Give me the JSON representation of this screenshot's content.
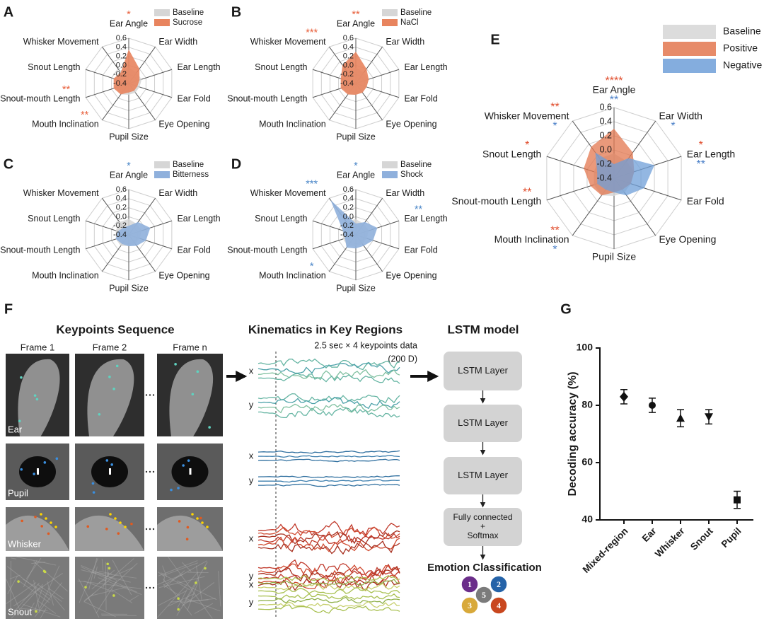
{
  "chart_data": [
    {
      "type": "radar",
      "panel_label": "A",
      "categories": [
        "Ear Angle",
        "Ear Width",
        "Ear Length",
        "Ear Fold",
        "Eye Opening",
        "Pupil Size",
        "Mouth Inclination",
        "Snout-mouth Length",
        "Snout Length",
        "Whisker Movement"
      ],
      "rlim": [
        -0.4,
        0.6
      ],
      "rticks": [
        -0.4,
        -0.2,
        {
          "value": 0,
          "label": "0.0"
        },
        0.2,
        0.4,
        0.6
      ],
      "series": [
        {
          "name": "Baseline",
          "color": "#d6d6d6",
          "values": [
            -0.05,
            -0.1,
            -0.1,
            -0.15,
            -0.15,
            -0.15,
            -0.1,
            -0.1,
            -0.1,
            -0.05
          ]
        },
        {
          "name": "Sucrose",
          "color": "#e8845e",
          "star_color": "#e8603c",
          "values": [
            0.35,
            0.0,
            -0.15,
            -0.2,
            -0.2,
            -0.2,
            -0.1,
            -0.05,
            -0.05,
            -0.1
          ],
          "stars": [
            "*",
            null,
            null,
            null,
            null,
            null,
            "**",
            "**",
            null,
            null
          ]
        }
      ]
    },
    {
      "type": "radar",
      "panel_label": "B",
      "categories": [
        "Ear Angle",
        "Ear Width",
        "Ear Length",
        "Ear Fold",
        "Eye Opening",
        "Pupil Size",
        "Mouth Inclination",
        "Snout-mouth Length",
        "Snout Length",
        "Whisker Movement"
      ],
      "rlim": [
        -0.4,
        0.6
      ],
      "rticks": [
        -0.4,
        -0.2,
        {
          "value": 0,
          "label": "0.0"
        },
        0.2,
        0.4,
        0.6
      ],
      "series": [
        {
          "name": "Baseline",
          "color": "#d6d6d6",
          "values": [
            -0.05,
            -0.1,
            -0.1,
            -0.15,
            -0.15,
            -0.15,
            -0.1,
            -0.1,
            -0.1,
            -0.05
          ]
        },
        {
          "name": "NaCl",
          "color": "#e8845e",
          "star_color": "#e8603c",
          "values": [
            0.3,
            0.0,
            -0.1,
            -0.15,
            -0.15,
            -0.15,
            -0.1,
            -0.05,
            -0.05,
            0.1
          ],
          "stars": [
            "**",
            null,
            null,
            null,
            null,
            null,
            null,
            null,
            null,
            "***"
          ]
        }
      ]
    },
    {
      "type": "radar",
      "panel_label": "C",
      "categories": [
        "Ear Angle",
        "Ear Width",
        "Ear Length",
        "Ear Fold",
        "Eye Opening",
        "Pupil Size",
        "Mouth Inclination",
        "Snout-mouth Length",
        "Snout Length",
        "Whisker Movement"
      ],
      "rlim": [
        -0.4,
        0.6
      ],
      "rticks": [
        -0.4,
        -0.2,
        {
          "value": 0,
          "label": "0.0"
        },
        0.2,
        0.4,
        0.6
      ],
      "series": [
        {
          "name": "Baseline",
          "color": "#d6d6d6",
          "values": [
            -0.05,
            -0.1,
            -0.1,
            -0.15,
            -0.15,
            -0.15,
            -0.1,
            -0.1,
            -0.1,
            -0.05
          ]
        },
        {
          "name": "Bitterness",
          "color": "#8fb0dc",
          "star_color": "#4a86c8",
          "values": [
            -0.2,
            -0.05,
            0.1,
            0.0,
            -0.1,
            -0.15,
            -0.15,
            -0.1,
            -0.15,
            -0.2
          ],
          "stars": [
            "*",
            null,
            null,
            null,
            null,
            null,
            null,
            null,
            null,
            null
          ]
        }
      ]
    },
    {
      "type": "radar",
      "panel_label": "D",
      "categories": [
        "Ear Angle",
        "Ear Width",
        "Ear Length",
        "Ear Fold",
        "Eye Opening",
        "Pupil Size",
        "Mouth Inclination",
        "Snout-mouth Length",
        "Snout Length",
        "Whisker Movement"
      ],
      "rlim": [
        -0.4,
        0.6
      ],
      "rticks": [
        -0.4,
        -0.2,
        {
          "value": 0,
          "label": "0.0"
        },
        0.2,
        0.4,
        0.6
      ],
      "series": [
        {
          "name": "Baseline",
          "color": "#d6d6d6",
          "values": [
            -0.05,
            -0.1,
            -0.1,
            -0.15,
            -0.15,
            -0.15,
            -0.1,
            -0.1,
            -0.1,
            -0.05
          ]
        },
        {
          "name": "Shock",
          "color": "#8fb0dc",
          "star_color": "#4a86c8",
          "values": [
            -0.15,
            -0.05,
            0.1,
            0.0,
            -0.1,
            -0.1,
            -0.05,
            -0.15,
            -0.1,
            0.55
          ],
          "stars": [
            "*",
            null,
            "**",
            null,
            null,
            null,
            "*",
            null,
            null,
            "***"
          ]
        }
      ]
    },
    {
      "type": "radar",
      "panel_label": "E",
      "categories": [
        "Ear Angle",
        "Ear Width",
        "Ear Length",
        "Ear Fold",
        "Eye Opening",
        "Pupil Size",
        "Mouth Inclination",
        "Snout-mouth Length",
        "Snout Length",
        "Whisker Movement"
      ],
      "rlim": [
        -0.4,
        0.6
      ],
      "rticks": [
        -0.4,
        -0.2,
        {
          "value": 0,
          "label": "0.0"
        },
        0.2,
        0.4,
        0.6
      ],
      "series": [
        {
          "name": "Baseline",
          "color": "#d6d6d6",
          "values": [
            -0.05,
            -0.1,
            -0.1,
            -0.15,
            -0.15,
            -0.15,
            -0.1,
            -0.1,
            -0.1,
            -0.05
          ]
        },
        {
          "name": "Positive",
          "color": "#e3774f",
          "star_color": "#e04b2a",
          "values": [
            0.3,
            0.05,
            -0.1,
            -0.15,
            -0.2,
            -0.2,
            -0.1,
            -0.05,
            0.05,
            0.15
          ],
          "stars": [
            "****",
            null,
            "*",
            null,
            null,
            null,
            "**",
            "**",
            "*",
            "**"
          ]
        },
        {
          "name": "Negative",
          "color": "#6f9fd8",
          "star_color": "#4a7fc8",
          "values": [
            -0.2,
            -0.05,
            0.2,
            0.05,
            -0.1,
            -0.2,
            -0.2,
            -0.15,
            -0.15,
            0.05
          ],
          "stars": [
            "**",
            "*",
            "**",
            null,
            null,
            null,
            "*",
            null,
            null,
            "*"
          ]
        }
      ]
    },
    {
      "type": "errorbar",
      "panel_label": "G",
      "categories": [
        "Mixed-region",
        "Ear",
        "Whisker",
        "Snout",
        "Pupil"
      ],
      "values": [
        83,
        80,
        75.5,
        76,
        47
      ],
      "errors": [
        2.5,
        2.5,
        3,
        2.5,
        3
      ],
      "markers": [
        "diamond",
        "circle",
        "triangle",
        "triangle-down",
        "square"
      ],
      "color": "#111111",
      "ylim": [
        40,
        100
      ],
      "yticks": [
        40,
        60,
        80,
        100
      ],
      "ylabel": "Decoding accuracy (%)"
    }
  ],
  "figure_f": {
    "panel_label": "F",
    "keypoints": {
      "title": "Keypoints Sequence",
      "frames": [
        "Frame 1",
        "Frame 2",
        "Frame n"
      ],
      "regions": [
        "Ear",
        "Pupil",
        "Whisker",
        "Snout"
      ]
    },
    "kinematics": {
      "title": "Kinematics in Key Regions",
      "note": "2.5 sec × 4 keypoints data",
      "dimension": "(200 D)",
      "axes": [
        "x",
        "y"
      ]
    },
    "lstm": {
      "title": "LSTM model",
      "layers": [
        "LSTM Layer",
        "LSTM Layer",
        "LSTM Layer"
      ],
      "head": [
        "Fully connected",
        "+",
        "Softmax"
      ],
      "output": "Emotion Classification",
      "classes": [
        "1",
        "2",
        "3",
        "4",
        "5"
      ]
    }
  }
}
